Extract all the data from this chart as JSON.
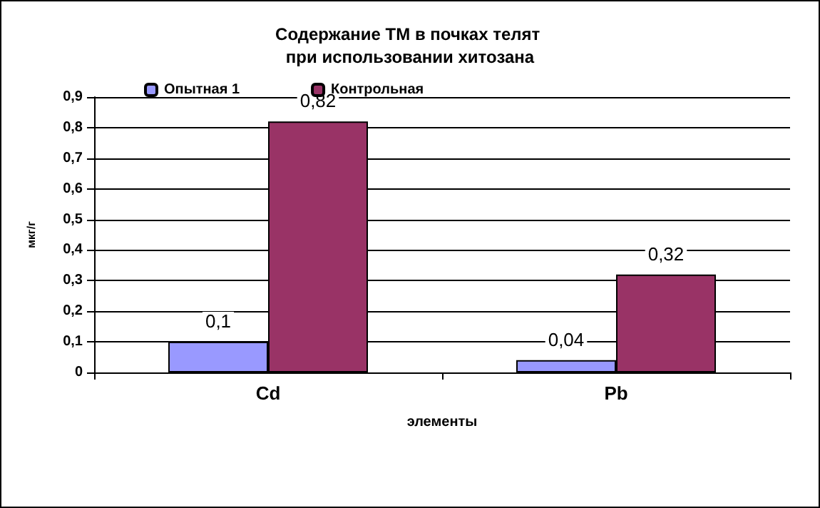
{
  "chart_data": {
    "type": "bar",
    "title": "Содержание ТМ в почках телят при использовании хитозана",
    "xlabel": "элементы",
    "ylabel": "мкг/г",
    "categories": [
      "Cd",
      "Pb"
    ],
    "series": [
      {
        "name": "Опытная 1",
        "color": "#9999ff",
        "values": [
          0.1,
          0.04
        ],
        "value_labels": [
          "0,1",
          "0,04"
        ]
      },
      {
        "name": "Контрольная",
        "color": "#993366",
        "values": [
          0.82,
          0.32
        ],
        "value_labels": [
          "0,82",
          "0,32"
        ]
      }
    ],
    "ylim": [
      0,
      0.9
    ],
    "yticks": [
      {
        "value": 0,
        "label": "0"
      },
      {
        "value": 0.1,
        "label": "0,1"
      },
      {
        "value": 0.2,
        "label": "0,2"
      },
      {
        "value": 0.3,
        "label": "0,3"
      },
      {
        "value": 0.4,
        "label": "0,4"
      },
      {
        "value": 0.5,
        "label": "0,5"
      },
      {
        "value": 0.6,
        "label": "0,6"
      },
      {
        "value": 0.7,
        "label": "0,7"
      },
      {
        "value": 0.8,
        "label": "0,8"
      },
      {
        "value": 0.9,
        "label": "0,9"
      }
    ],
    "grid": "y",
    "legend": "top left"
  }
}
